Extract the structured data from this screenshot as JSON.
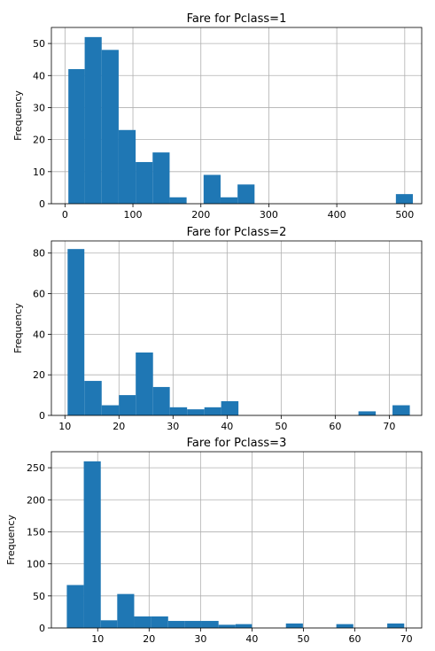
{
  "chart_data": [
    {
      "type": "bar",
      "title": "Fare for Pclass=1",
      "xlabel": "",
      "ylabel": "Frequency",
      "xlim": [
        -20,
        525
      ],
      "ylim": [
        0,
        55
      ],
      "xticks": [
        0,
        100,
        200,
        300,
        400,
        500
      ],
      "yticks": [
        0,
        10,
        20,
        30,
        40,
        50
      ],
      "grid": true,
      "bar_color": "#1f77b4",
      "bins": [
        {
          "x0": 5,
          "x1": 29,
          "count": 42
        },
        {
          "x0": 29,
          "x1": 54,
          "count": 52
        },
        {
          "x0": 54,
          "x1": 79,
          "count": 48
        },
        {
          "x0": 79,
          "x1": 104,
          "count": 23
        },
        {
          "x0": 104,
          "x1": 129,
          "count": 13
        },
        {
          "x0": 129,
          "x1": 154,
          "count": 16
        },
        {
          "x0": 154,
          "x1": 179,
          "count": 2
        },
        {
          "x0": 204,
          "x1": 229,
          "count": 9
        },
        {
          "x0": 229,
          "x1": 254,
          "count": 2
        },
        {
          "x0": 254,
          "x1": 279,
          "count": 6
        },
        {
          "x0": 487,
          "x1": 512,
          "count": 3
        }
      ]
    },
    {
      "type": "bar",
      "title": "Fare for Pclass=2",
      "xlabel": "",
      "ylabel": "Frequency",
      "xlim": [
        7.5,
        76
      ],
      "ylim": [
        0,
        86
      ],
      "xticks": [
        10,
        20,
        30,
        40,
        50,
        60,
        70
      ],
      "yticks": [
        0,
        20,
        40,
        60,
        80
      ],
      "grid": true,
      "bar_color": "#1f77b4",
      "bins": [
        {
          "x0": 10.5,
          "x1": 13.6,
          "count": 82
        },
        {
          "x0": 13.6,
          "x1": 16.8,
          "count": 17
        },
        {
          "x0": 16.8,
          "x1": 20.0,
          "count": 5
        },
        {
          "x0": 20.0,
          "x1": 23.1,
          "count": 10
        },
        {
          "x0": 23.1,
          "x1": 26.3,
          "count": 31
        },
        {
          "x0": 26.3,
          "x1": 29.4,
          "count": 14
        },
        {
          "x0": 29.4,
          "x1": 32.6,
          "count": 4
        },
        {
          "x0": 32.6,
          "x1": 35.8,
          "count": 3
        },
        {
          "x0": 35.8,
          "x1": 38.9,
          "count": 4
        },
        {
          "x0": 38.9,
          "x1": 42.1,
          "count": 7
        },
        {
          "x0": 64.3,
          "x1": 67.5,
          "count": 2
        },
        {
          "x0": 70.6,
          "x1": 73.8,
          "count": 5
        }
      ]
    },
    {
      "type": "bar",
      "title": "Fare for Pclass=3",
      "xlabel": "",
      "ylabel": "Frequency",
      "xlim": [
        1,
        73
      ],
      "ylim": [
        0,
        275
      ],
      "xticks": [
        10,
        20,
        30,
        40,
        50,
        60,
        70
      ],
      "yticks": [
        0,
        50,
        100,
        150,
        200,
        250
      ],
      "grid": true,
      "bar_color": "#1f77b4",
      "bins": [
        {
          "x0": 4.0,
          "x1": 7.3,
          "count": 67
        },
        {
          "x0": 7.3,
          "x1": 10.6,
          "count": 260
        },
        {
          "x0": 10.6,
          "x1": 13.8,
          "count": 12
        },
        {
          "x0": 13.8,
          "x1": 17.1,
          "count": 53
        },
        {
          "x0": 17.1,
          "x1": 20.4,
          "count": 18
        },
        {
          "x0": 20.4,
          "x1": 23.7,
          "count": 18
        },
        {
          "x0": 23.7,
          "x1": 26.9,
          "count": 11
        },
        {
          "x0": 26.9,
          "x1": 30.2,
          "count": 11
        },
        {
          "x0": 30.2,
          "x1": 33.5,
          "count": 11
        },
        {
          "x0": 33.5,
          "x1": 36.8,
          "count": 5
        },
        {
          "x0": 36.8,
          "x1": 40.0,
          "count": 6
        },
        {
          "x0": 46.6,
          "x1": 49.9,
          "count": 7
        },
        {
          "x0": 56.4,
          "x1": 59.7,
          "count": 6
        },
        {
          "x0": 66.3,
          "x1": 69.6,
          "count": 7
        }
      ]
    }
  ]
}
